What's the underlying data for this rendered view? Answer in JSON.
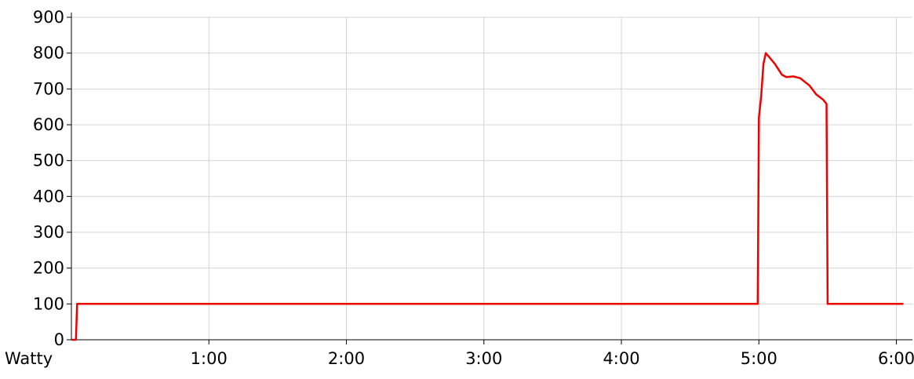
{
  "chart_data": {
    "type": "line",
    "title": "",
    "xlabel": "Watty",
    "ylabel": "",
    "x_unit": "minutes",
    "xlim": [
      0,
      367
    ],
    "ylim": [
      0,
      900
    ],
    "grid": true,
    "legend": "none",
    "y_ticks": [
      0,
      100,
      200,
      300,
      400,
      500,
      600,
      700,
      800,
      900
    ],
    "y_tick_labels": [
      "0",
      "100",
      "200",
      "300",
      "400",
      "500",
      "600",
      "700",
      "800",
      "900"
    ],
    "x_ticks": [
      60,
      120,
      180,
      240,
      300,
      360
    ],
    "x_tick_labels": [
      "1:00",
      "2:00",
      "3:00",
      "4:00",
      "5:00",
      "6:00"
    ],
    "colors": {
      "series": "#ee0000",
      "grid": "#d4d4d4",
      "axis": "#000000"
    },
    "series": [
      {
        "x": [
          0,
          2,
          2.5,
          299.5,
          300,
          301,
          302,
          303,
          305,
          307,
          310,
          312,
          315,
          318,
          320,
          322,
          325,
          328,
          329.5,
          330,
          332,
          335,
          340,
          345,
          350,
          355,
          360,
          363
        ],
        "y": [
          0,
          0,
          100,
          100,
          620,
          680,
          770,
          800,
          785,
          770,
          740,
          733,
          735,
          730,
          720,
          710,
          685,
          670,
          658,
          100,
          100,
          100,
          100,
          100,
          100,
          100,
          100,
          100
        ]
      }
    ]
  }
}
